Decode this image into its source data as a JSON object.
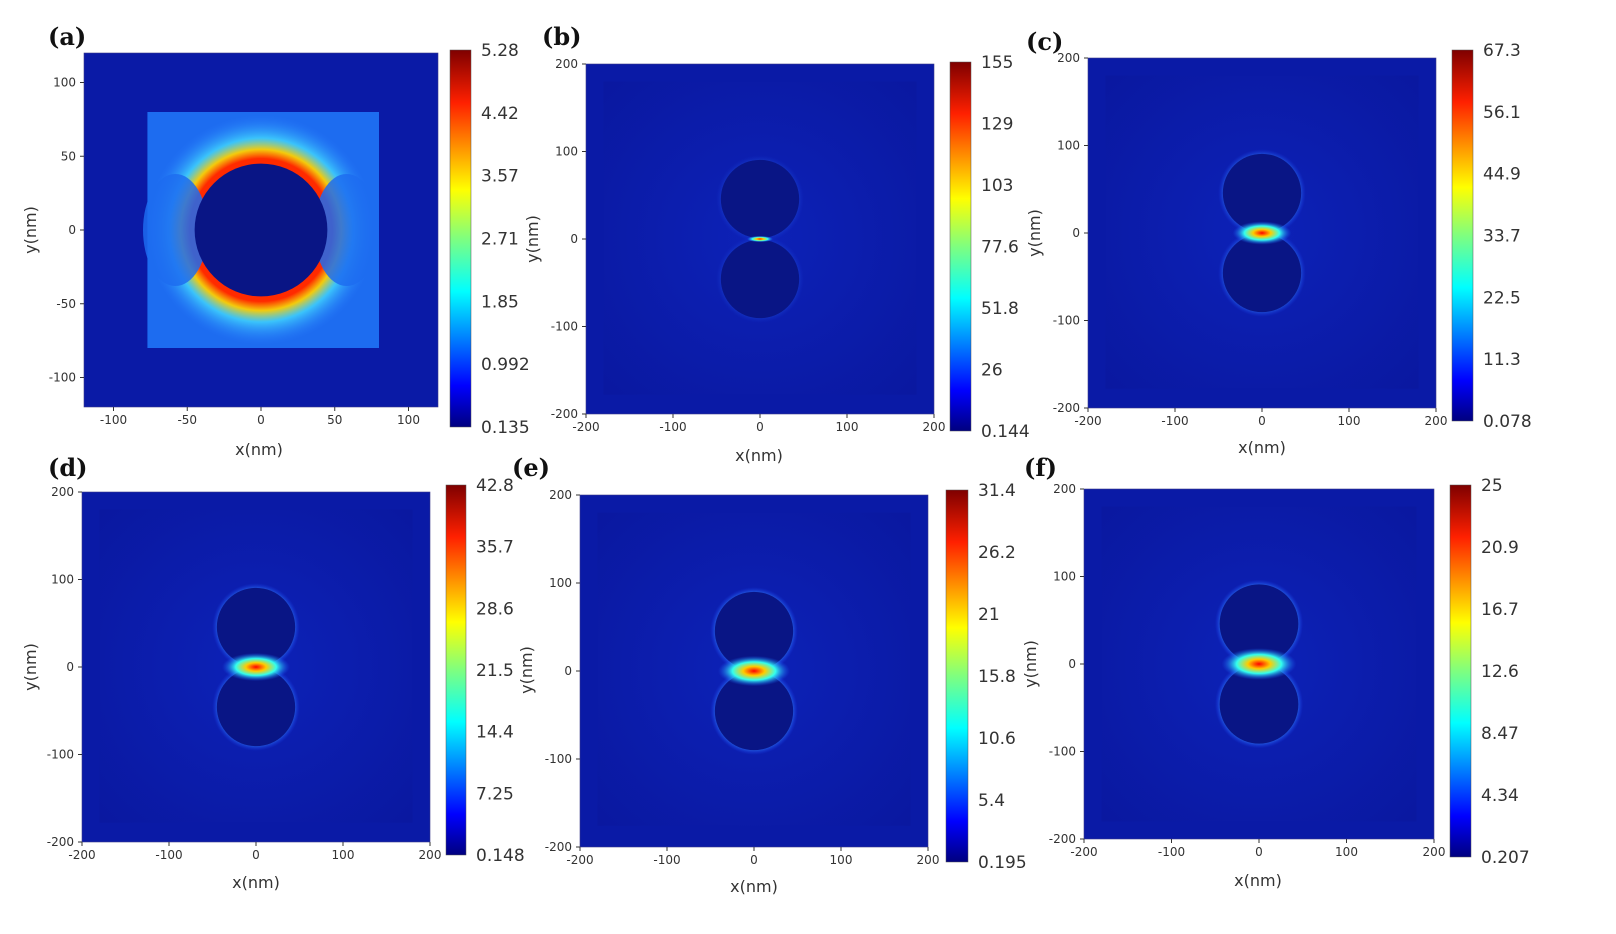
{
  "chart_data": [
    {
      "type": "heatmap",
      "panel_label": "(a)",
      "xlabel": "x(nm)",
      "ylabel": "y(nm)",
      "xlim": [
        -120,
        120
      ],
      "ylim": [
        -120,
        120
      ],
      "x_ticks": [
        "-100",
        "-50",
        "0",
        "50",
        "100"
      ],
      "y_ticks": [
        "100",
        "50",
        "0",
        "-50",
        "-100"
      ],
      "colorbar_ticks": [
        "5.28",
        "4.42",
        "3.57",
        "2.71",
        "1.85",
        "0.992",
        "0.135"
      ],
      "colorbar_range": [
        0.135,
        5.28
      ],
      "max_value": 5.28,
      "structure": "single-sphere"
    },
    {
      "type": "heatmap",
      "panel_label": "(b)",
      "xlabel": "x(nm)",
      "ylabel": "y(nm)",
      "xlim": [
        -200,
        200
      ],
      "ylim": [
        -200,
        200
      ],
      "x_ticks": [
        "-200",
        "-100",
        "0",
        "100",
        "200"
      ],
      "y_ticks": [
        "200",
        "100",
        "0",
        "-100",
        "-200"
      ],
      "colorbar_ticks": [
        "155",
        "129",
        "103",
        "77.6",
        "51.8",
        "26",
        "0.144"
      ],
      "colorbar_range": [
        0.144,
        155
      ],
      "max_value": 155,
      "structure": "sphere-dimer"
    },
    {
      "type": "heatmap",
      "panel_label": "(c)",
      "xlabel": "x(nm)",
      "ylabel": "y(nm)",
      "xlim": [
        -200,
        200
      ],
      "ylim": [
        -200,
        200
      ],
      "x_ticks": [
        "-200",
        "-100",
        "0",
        "100",
        "200"
      ],
      "y_ticks": [
        "200",
        "100",
        "0",
        "-100",
        "-200"
      ],
      "colorbar_ticks": [
        "67.3",
        "56.1",
        "44.9",
        "33.7",
        "22.5",
        "11.3",
        "0.078"
      ],
      "colorbar_range": [
        0.078,
        67.3
      ],
      "max_value": 67.3,
      "structure": "sphere-dimer"
    },
    {
      "type": "heatmap",
      "panel_label": "(d)",
      "xlabel": "x(nm)",
      "ylabel": "y(nm)",
      "xlim": [
        -200,
        200
      ],
      "ylim": [
        -200,
        200
      ],
      "x_ticks": [
        "-200",
        "-100",
        "0",
        "100",
        "200"
      ],
      "y_ticks": [
        "200",
        "100",
        "0",
        "-100",
        "-200"
      ],
      "colorbar_ticks": [
        "42.8",
        "35.7",
        "28.6",
        "21.5",
        "14.4",
        "7.25",
        "0.148"
      ],
      "colorbar_range": [
        0.148,
        42.8
      ],
      "max_value": 42.8,
      "structure": "sphere-dimer"
    },
    {
      "type": "heatmap",
      "panel_label": "(e)",
      "xlabel": "x(nm)",
      "ylabel": "y(nm)",
      "xlim": [
        -200,
        200
      ],
      "ylim": [
        -200,
        200
      ],
      "x_ticks": [
        "-200",
        "-100",
        "0",
        "100",
        "200"
      ],
      "y_ticks": [
        "200",
        "100",
        "0",
        "-100",
        "-200"
      ],
      "colorbar_ticks": [
        "31.4",
        "26.2",
        "21",
        "15.8",
        "10.6",
        "5.4",
        "0.195"
      ],
      "colorbar_range": [
        0.195,
        31.4
      ],
      "max_value": 31.4,
      "structure": "sphere-dimer"
    },
    {
      "type": "heatmap",
      "panel_label": "(f)",
      "xlabel": "x(nm)",
      "ylabel": "y(nm)",
      "xlim": [
        -200,
        200
      ],
      "ylim": [
        -200,
        200
      ],
      "x_ticks": [
        "-200",
        "-100",
        "0",
        "100",
        "200"
      ],
      "y_ticks": [
        "200",
        "100",
        "0",
        "-100",
        "-200"
      ],
      "colorbar_ticks": [
        "25",
        "20.9",
        "16.7",
        "12.6",
        "8.47",
        "4.34",
        "0.207"
      ],
      "colorbar_range": [
        0.207,
        25
      ],
      "max_value": 25,
      "structure": "sphere-dimer"
    }
  ],
  "colors": {
    "jet": [
      "#00007f",
      "#0000ff",
      "#007fff",
      "#00ffff",
      "#7fff7f",
      "#ffff00",
      "#ff7f00",
      "#ff0000",
      "#7f0000"
    ],
    "background_field": "#0a1aa6",
    "sphere_interior": "#091585"
  }
}
